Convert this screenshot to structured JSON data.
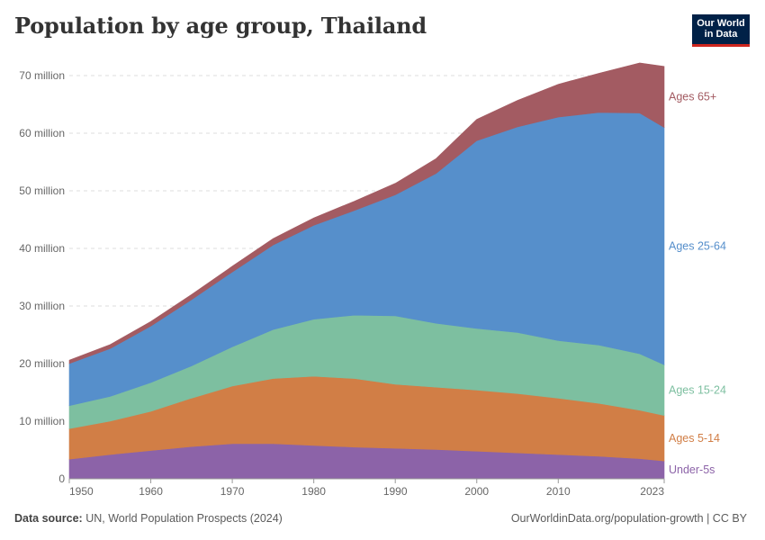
{
  "header": {
    "title": "Population by age group, Thailand",
    "logo_line1": "Our World",
    "logo_line2": "in Data"
  },
  "footer": {
    "source_label": "Data source:",
    "source_text": "UN, World Population Prospects (2024)",
    "link": "OurWorldinData.org/population-growth | CC BY"
  },
  "chart_data": {
    "type": "area",
    "stacked": true,
    "title": "Population by age group, Thailand",
    "xlim": [
      1950,
      2023
    ],
    "ylim": [
      0,
      70000000
    ],
    "x_ticks": [
      1950,
      1960,
      1970,
      1980,
      1990,
      2000,
      2010,
      2023
    ],
    "y_ticks": [
      {
        "value": 0,
        "label": "0"
      },
      {
        "value": 10000000,
        "label": "10 million"
      },
      {
        "value": 20000000,
        "label": "20 million"
      },
      {
        "value": 30000000,
        "label": "30 million"
      },
      {
        "value": 40000000,
        "label": "40 million"
      },
      {
        "value": 50000000,
        "label": "50 million"
      },
      {
        "value": 60000000,
        "label": "60 million"
      },
      {
        "value": 70000000,
        "label": "70 million"
      }
    ],
    "grid": true,
    "x": [
      1950,
      1955,
      1960,
      1965,
      1970,
      1975,
      1980,
      1985,
      1990,
      1995,
      2000,
      2005,
      2010,
      2015,
      2020,
      2023
    ],
    "series": [
      {
        "name": "Under-5s",
        "color": "#8c63a8",
        "values": [
          3400000,
          4200000,
          4900000,
          5600000,
          6100000,
          6100000,
          5800000,
          5500000,
          5300000,
          5100000,
          4800000,
          4500000,
          4200000,
          3900000,
          3500000,
          3100000
        ]
      },
      {
        "name": "Ages 5-14",
        "color": "#d17e46",
        "values": [
          5300000,
          5800000,
          6800000,
          8400000,
          10000000,
          11300000,
          12000000,
          11900000,
          11100000,
          10800000,
          10600000,
          10300000,
          9800000,
          9200000,
          8400000,
          7900000
        ]
      },
      {
        "name": "Ages 15-24",
        "color": "#7dbfa0",
        "values": [
          4000000,
          4300000,
          5000000,
          5600000,
          6800000,
          8500000,
          9900000,
          11000000,
          11900000,
          11100000,
          10700000,
          10600000,
          10000000,
          10100000,
          9800000,
          8800000
        ]
      },
      {
        "name": "Ages 25-64",
        "color": "#568fcb",
        "values": [
          7300000,
          8300000,
          9800000,
          11500000,
          13000000,
          14700000,
          16300000,
          18200000,
          21000000,
          26000000,
          32600000,
          35700000,
          38800000,
          40400000,
          41800000,
          41200000
        ]
      },
      {
        "name": "Ages 65+",
        "color": "#a35b62",
        "values": [
          600000,
          700000,
          800000,
          900000,
          1000000,
          1100000,
          1300000,
          1600000,
          2000000,
          2600000,
          3700000,
          4600000,
          5700000,
          6800000,
          8700000,
          10600000
        ]
      }
    ]
  }
}
